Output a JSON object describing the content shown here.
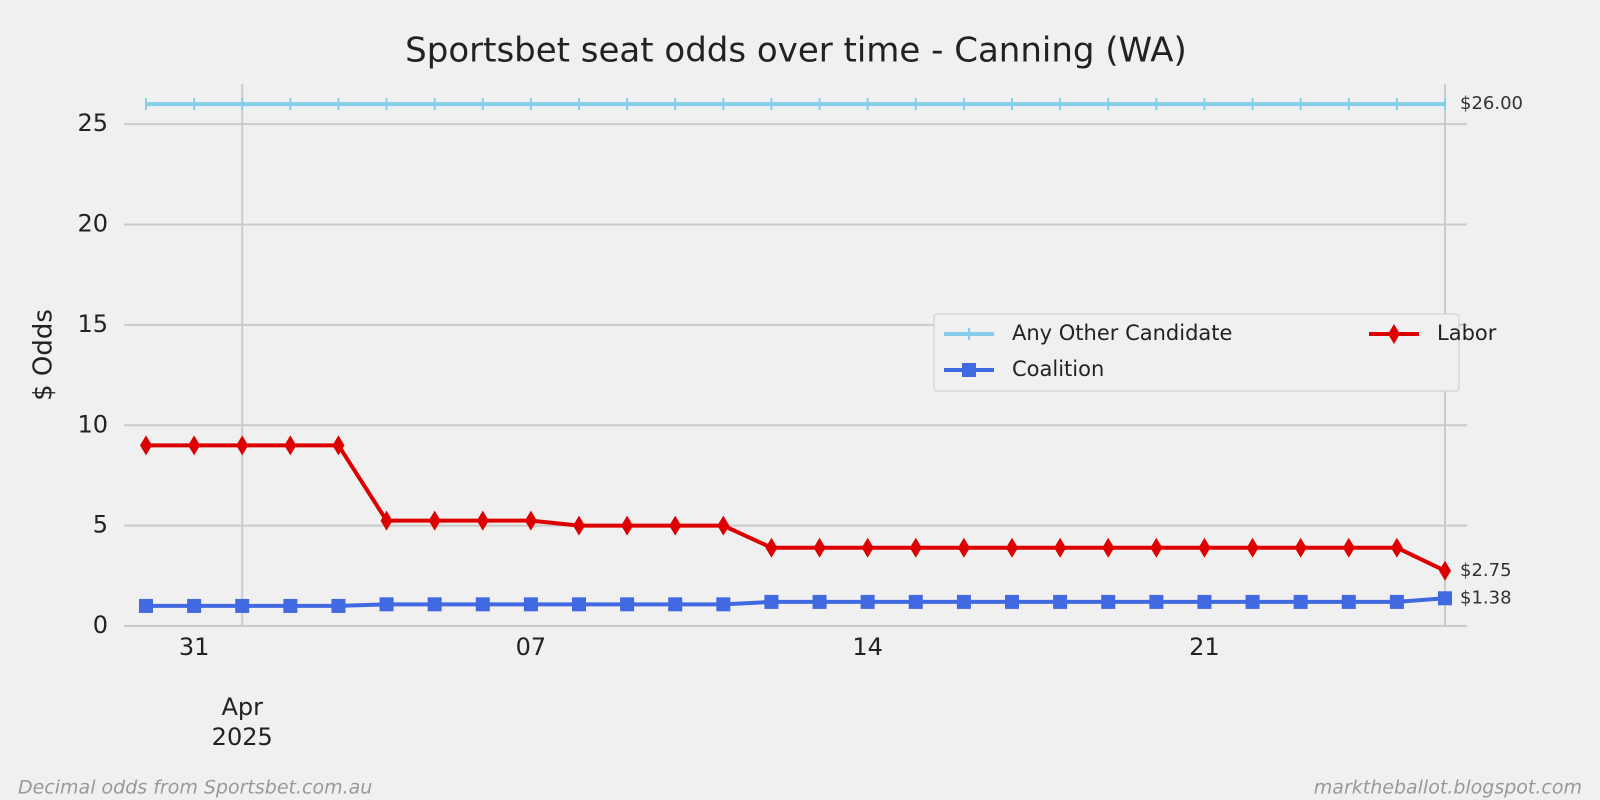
{
  "chart_data": {
    "type": "line",
    "title": "Sportsbet seat odds over time - Canning (WA)",
    "ylabel": "$ Odds",
    "source": "Decimal odds from Sportsbet.com.au",
    "credit": "marktheballot.blogspot.com",
    "x": [
      "2025-03-30",
      "2025-03-31",
      "2025-04-01",
      "2025-04-02",
      "2025-04-03",
      "2025-04-04",
      "2025-04-05",
      "2025-04-06",
      "2025-04-07",
      "2025-04-08",
      "2025-04-09",
      "2025-04-10",
      "2025-04-11",
      "2025-04-12",
      "2025-04-13",
      "2025-04-14",
      "2025-04-15",
      "2025-04-16",
      "2025-04-17",
      "2025-04-18",
      "2025-04-19",
      "2025-04-20",
      "2025-04-21",
      "2025-04-22",
      "2025-04-23",
      "2025-04-24",
      "2025-04-25",
      "2025-04-26"
    ],
    "series": [
      {
        "name": "Any Other Candidate",
        "color": "#87ceeb",
        "marker": "vline",
        "values": [
          26,
          26,
          26,
          26,
          26,
          26,
          26,
          26,
          26,
          26,
          26,
          26,
          26,
          26,
          26,
          26,
          26,
          26,
          26,
          26,
          26,
          26,
          26,
          26,
          26,
          26,
          26,
          26
        ],
        "value_labels": [
          null,
          null,
          null,
          null,
          null,
          null,
          null,
          null,
          null,
          null,
          null,
          null,
          null,
          null,
          null,
          null,
          null,
          null,
          null,
          null,
          null,
          null,
          null,
          null,
          null,
          null,
          null,
          "$26.00"
        ]
      },
      {
        "name": "Coalition",
        "color": "#4169e1",
        "marker": "square",
        "values": [
          1.0,
          1.0,
          1.0,
          1.0,
          1.0,
          1.08,
          1.08,
          1.08,
          1.08,
          1.08,
          1.08,
          1.08,
          1.08,
          1.2,
          1.2,
          1.2,
          1.2,
          1.2,
          1.2,
          1.2,
          1.2,
          1.2,
          1.2,
          1.2,
          1.2,
          1.2,
          1.2,
          1.38
        ],
        "value_labels": [
          null,
          null,
          null,
          null,
          null,
          null,
          null,
          null,
          null,
          null,
          null,
          null,
          null,
          null,
          null,
          null,
          null,
          null,
          null,
          null,
          null,
          null,
          null,
          null,
          null,
          null,
          null,
          "$1.38"
        ]
      },
      {
        "name": "Labor",
        "color": "#dd0000",
        "marker": "diamond",
        "values": [
          9,
          9,
          9,
          9,
          9,
          5.25,
          5.25,
          5.25,
          5.25,
          5.0,
          5.0,
          5.0,
          5.0,
          3.9,
          3.9,
          3.9,
          3.9,
          3.9,
          3.9,
          3.9,
          3.9,
          3.9,
          3.9,
          3.9,
          3.9,
          3.9,
          3.9,
          2.75
        ],
        "value_labels": [
          null,
          null,
          null,
          null,
          null,
          null,
          null,
          null,
          null,
          null,
          null,
          null,
          null,
          null,
          null,
          null,
          null,
          null,
          null,
          null,
          null,
          null,
          null,
          null,
          null,
          null,
          null,
          "$2.75"
        ]
      }
    ],
    "xlim": [
      "2025-03-30",
      "2025-04-26"
    ],
    "xticks": [
      {
        "value": "2025-03-31",
        "label": "31"
      },
      {
        "value": "2025-04-01",
        "label": "\n\nApr\n2025"
      },
      {
        "value": "2025-04-07",
        "label": "07"
      },
      {
        "value": "2025-04-14",
        "label": "14"
      },
      {
        "value": "2025-04-21",
        "label": "21"
      }
    ],
    "ylim": [
      0,
      27
    ],
    "yticks": [
      0,
      5,
      10,
      15,
      20,
      25
    ],
    "grid": true,
    "legend": "center right"
  }
}
